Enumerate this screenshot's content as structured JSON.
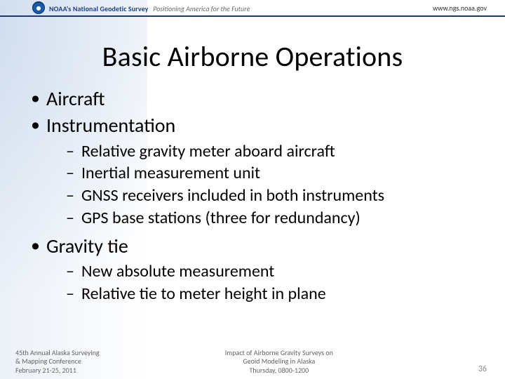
{
  "header": {
    "org_bold": "NOAA's National Geodetic Survey",
    "org_tag": "Positioning America for the Future",
    "url": "www.ngs.noaa.gov",
    "accent_color": "#16387c"
  },
  "title": "Basic Airborne Operations",
  "bullets": [
    {
      "label": "Aircraft",
      "children": []
    },
    {
      "label": "Instrumentation",
      "children": [
        "Relative gravity meter aboard aircraft",
        "Inertial measurement unit",
        "GNSS receivers included in both instruments",
        "GPS base stations (three for redundancy)"
      ]
    },
    {
      "label": "Gravity tie",
      "children": [
        "New absolute measurement",
        "Relative tie to meter height in plane"
      ]
    }
  ],
  "footer": {
    "left_line1": "45th Annual Alaska Surveying",
    "left_line2": "& Mapping Conference",
    "left_line3": "February 21-25, 2011",
    "center_line1": "Impact of Airborne Gravity Surveys on",
    "center_line2": "Geoid Modeling in Alaska",
    "center_line3": "Thursday, 0800-1200",
    "page_number": "36"
  },
  "style": {
    "title_fontsize": 40,
    "level1_fontsize": 28,
    "level2_fontsize": 24,
    "footer_fontsize": 10,
    "text_color": "#000000",
    "footer_color": "#646464",
    "background_color": "#ffffff"
  }
}
